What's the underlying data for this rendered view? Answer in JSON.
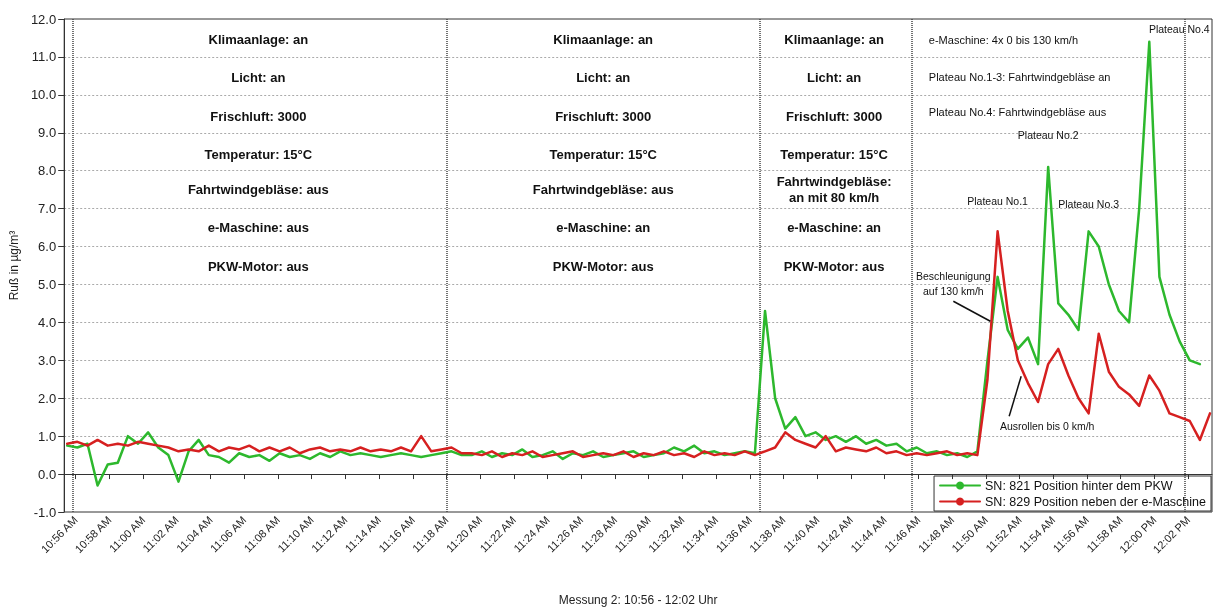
{
  "chart_data": {
    "type": "line",
    "xlabel": "Messung 2: 10:56 - 12:02 Uhr",
    "ylabel": "Ruß in µg/m³",
    "x": [
      10.925,
      10.935,
      10.945,
      10.955,
      10.965,
      10.975,
      10.985,
      10.995,
      11.005,
      11.015,
      11.025,
      11.035,
      11.045,
      11.055,
      11.065,
      11.075,
      11.085,
      11.095,
      11.105,
      11.115,
      11.125,
      11.135,
      11.145,
      11.155,
      11.165,
      11.175,
      11.185,
      11.195,
      11.205,
      11.215,
      11.225,
      11.235,
      11.245,
      11.255,
      11.265,
      11.275,
      11.285,
      11.295,
      11.305,
      11.315,
      11.325,
      11.335,
      11.345,
      11.355,
      11.365,
      11.375,
      11.385,
      11.395,
      11.405,
      11.415,
      11.425,
      11.435,
      11.445,
      11.455,
      11.465,
      11.475,
      11.485,
      11.495,
      11.505,
      11.515,
      11.525,
      11.535,
      11.545,
      11.555,
      11.565,
      11.575,
      11.585,
      11.595,
      11.605,
      11.615,
      11.625,
      11.635,
      11.645,
      11.655,
      11.665,
      11.675,
      11.685,
      11.695,
      11.705,
      11.715,
      11.725,
      11.735,
      11.745,
      11.755,
      11.765,
      11.775,
      11.785,
      11.795,
      11.805,
      11.815,
      11.825,
      11.835,
      11.845,
      11.855,
      11.865,
      11.875,
      11.885,
      11.895,
      11.905,
      11.915,
      11.925,
      11.935,
      11.945,
      11.955,
      11.965,
      11.975,
      11.985,
      11.995,
      12.005,
      12.015,
      12.025,
      12.035,
      12.045,
      12.055
    ],
    "series": [
      {
        "name": "SN: 821 Position hinter dem PKW",
        "color": "#2db82d",
        "values": [
          0.75,
          0.7,
          0.8,
          -0.3,
          0.25,
          0.3,
          1.0,
          0.8,
          1.1,
          0.7,
          0.5,
          -0.2,
          0.6,
          0.9,
          0.5,
          0.45,
          0.3,
          0.55,
          0.45,
          0.5,
          0.35,
          0.55,
          0.45,
          0.5,
          0.4,
          0.55,
          0.45,
          0.6,
          0.5,
          0.55,
          0.5,
          0.45,
          0.5,
          0.55,
          0.5,
          0.45,
          0.5,
          0.55,
          0.6,
          0.5,
          0.5,
          0.6,
          0.45,
          0.55,
          0.5,
          0.65,
          0.45,
          0.5,
          0.6,
          0.4,
          0.55,
          0.5,
          0.6,
          0.45,
          0.5,
          0.55,
          0.6,
          0.45,
          0.5,
          0.55,
          0.7,
          0.6,
          0.75,
          0.55,
          0.6,
          0.5,
          0.55,
          0.6,
          0.55,
          4.3,
          2.0,
          1.2,
          1.5,
          1.0,
          1.1,
          0.9,
          1.0,
          0.85,
          1.0,
          0.8,
          0.9,
          0.75,
          0.8,
          0.6,
          0.7,
          0.55,
          0.6,
          0.5,
          0.55,
          0.45,
          0.6,
          3.0,
          5.2,
          3.8,
          3.3,
          3.6,
          2.9,
          8.1,
          4.5,
          4.2,
          3.8,
          6.4,
          6.0,
          5.0,
          4.3,
          4.0,
          7.0,
          11.4,
          5.2,
          4.2,
          3.5,
          3.0,
          2.9,
          null
        ]
      },
      {
        "name": "SN: 829 Position neben der e-Maschine",
        "color": "#d62020",
        "values": [
          0.8,
          0.85,
          0.75,
          0.9,
          0.75,
          0.8,
          0.75,
          0.85,
          0.8,
          0.75,
          0.7,
          0.6,
          0.65,
          0.6,
          0.75,
          0.6,
          0.7,
          0.65,
          0.75,
          0.6,
          0.7,
          0.6,
          0.7,
          0.55,
          0.65,
          0.7,
          0.6,
          0.65,
          0.6,
          0.7,
          0.6,
          0.65,
          0.6,
          0.7,
          0.6,
          1.0,
          0.6,
          0.65,
          0.7,
          0.55,
          0.55,
          0.5,
          0.6,
          0.45,
          0.55,
          0.5,
          0.6,
          0.45,
          0.5,
          0.55,
          0.6,
          0.45,
          0.5,
          0.55,
          0.5,
          0.6,
          0.45,
          0.55,
          0.5,
          0.6,
          0.5,
          0.55,
          0.45,
          0.6,
          0.5,
          0.55,
          0.5,
          0.6,
          0.5,
          0.6,
          0.7,
          1.1,
          0.9,
          0.8,
          0.7,
          1.0,
          0.6,
          0.7,
          0.65,
          0.6,
          0.7,
          0.55,
          0.6,
          0.5,
          0.55,
          0.5,
          0.55,
          0.6,
          0.5,
          0.55,
          0.5,
          2.5,
          6.4,
          4.3,
          3.0,
          2.4,
          1.9,
          2.9,
          3.3,
          2.6,
          2.0,
          1.6,
          3.7,
          2.7,
          2.3,
          2.1,
          1.8,
          2.6,
          2.2,
          1.6,
          1.5,
          1.4,
          0.9,
          1.6
        ]
      }
    ],
    "xlim": [
      10.922,
      12.057
    ],
    "xticks": [
      {
        "value": 10.9333,
        "label": "10:56 AM"
      },
      {
        "value": 10.9667,
        "label": "10:58 AM"
      },
      {
        "value": 11,
        "label": "11:00 AM"
      },
      {
        "value": 11.0333,
        "label": "11:02 AM"
      },
      {
        "value": 11.0667,
        "label": "11:04 AM"
      },
      {
        "value": 11.1,
        "label": "11:06 AM"
      },
      {
        "value": 11.1333,
        "label": "11:08 AM"
      },
      {
        "value": 11.1667,
        "label": "11:10 AM"
      },
      {
        "value": 11.2,
        "label": "11:12 AM"
      },
      {
        "value": 11.2333,
        "label": "11:14 AM"
      },
      {
        "value": 11.2667,
        "label": "11:16 AM"
      },
      {
        "value": 11.3,
        "label": "11:18 AM"
      },
      {
        "value": 11.3333,
        "label": "11:20 AM"
      },
      {
        "value": 11.3667,
        "label": "11:22 AM"
      },
      {
        "value": 11.4,
        "label": "11:24 AM"
      },
      {
        "value": 11.4333,
        "label": "11:26 AM"
      },
      {
        "value": 11.4667,
        "label": "11:28 AM"
      },
      {
        "value": 11.5,
        "label": "11:30 AM"
      },
      {
        "value": 11.5333,
        "label": "11:32 AM"
      },
      {
        "value": 11.5667,
        "label": "11:34 AM"
      },
      {
        "value": 11.6,
        "label": "11:36 AM"
      },
      {
        "value": 11.6333,
        "label": "11:38 AM"
      },
      {
        "value": 11.6667,
        "label": "11:40 AM"
      },
      {
        "value": 11.7,
        "label": "11:42 AM"
      },
      {
        "value": 11.7333,
        "label": "11:44 AM"
      },
      {
        "value": 11.7667,
        "label": "11:46 AM"
      },
      {
        "value": 11.8,
        "label": "11:48 AM"
      },
      {
        "value": 11.8333,
        "label": "11:50 AM"
      },
      {
        "value": 11.8667,
        "label": "11:52 AM"
      },
      {
        "value": 11.9,
        "label": "11:54 AM"
      },
      {
        "value": 11.9333,
        "label": "11:56 AM"
      },
      {
        "value": 11.9667,
        "label": "11:58 AM"
      },
      {
        "value": 12,
        "label": "12:00 PM"
      },
      {
        "value": 12.0333,
        "label": "12:02 PM"
      }
    ],
    "ylim": [
      -1,
      12
    ],
    "yticks": [
      {
        "value": -1,
        "label": "-1.0"
      },
      {
        "value": 0,
        "label": "0.0"
      },
      {
        "value": 1,
        "label": "1.0"
      },
      {
        "value": 2,
        "label": "2.0"
      },
      {
        "value": 3,
        "label": "3.0"
      },
      {
        "value": 4,
        "label": "4.0"
      },
      {
        "value": 5,
        "label": "5.0"
      },
      {
        "value": 6,
        "label": "6.0"
      },
      {
        "value": 7,
        "label": "7.0"
      },
      {
        "value": 8,
        "label": "8.0"
      },
      {
        "value": 9,
        "label": "9.0"
      },
      {
        "value": 10,
        "label": "10.0"
      },
      {
        "value": 11,
        "label": "11.0"
      },
      {
        "value": 12,
        "label": "12.0"
      }
    ],
    "ref_lines": [
      {
        "axis": "x",
        "value": 10.9333,
        "color": "#444444",
        "line_style": "dotted"
      },
      {
        "axis": "x",
        "value": 11.3,
        "color": "#444444",
        "line_style": "dotted"
      },
      {
        "axis": "x",
        "value": 11.6142,
        "color": "#444444",
        "line_style": "dotted"
      },
      {
        "axis": "x",
        "value": 11.7617,
        "color": "#444444",
        "line_style": "dotted"
      },
      {
        "axis": "x",
        "value": 12.0333,
        "color": "#444444",
        "line_style": "dotted"
      }
    ],
    "annotations": [
      "Klimaanlage: an",
      "Licht: an",
      "Frischluft: 3000",
      "Temperatur: 15°C",
      "Fahrtwindgebläse: aus",
      "e-Maschine: aus",
      "PKW-Motor: aus",
      "Klimaanlage: an",
      "Licht: an",
      "Frischluft: 3000",
      "Temperatur: 15°C",
      "Fahrtwindgebläse: aus",
      "e-Maschine: an",
      "PKW-Motor: aus",
      "Klimaanlage: an",
      "Licht: an",
      "Frischluft: 3000",
      "Temperatur: 15°C",
      "Fahrtwindgebläse:\nan mit 80 km/h",
      "e-Maschine: an",
      "PKW-Motor: aus",
      "e-Maschine: 4x 0 bis 130 km/h",
      "Plateau No.1-3: Fahrtwindgebläse an",
      "Plateau No.4: Fahrtwindgebläse aus",
      {
        "text": "Plateau No.1",
        "x": 11.845,
        "y": 6.4
      },
      {
        "text": "Plateau No.2",
        "x": 11.895,
        "y": 8.1
      },
      {
        "text": "Plateau No.3",
        "x": 11.935,
        "y": 6.4
      },
      {
        "text": "Plateau No.4",
        "x": 11.995,
        "y": 11.4
      },
      {
        "text": "Beschleunigung\nauf 130 km/h",
        "x": 11.8378,
        "y": 4.03
      },
      {
        "text": "Ausrollen bis 0 km/h",
        "x": 11.8683,
        "y": 2.58
      }
    ],
    "grid": "y",
    "legend": "bottom right",
    "marker": "none",
    "line_style": "solid"
  }
}
